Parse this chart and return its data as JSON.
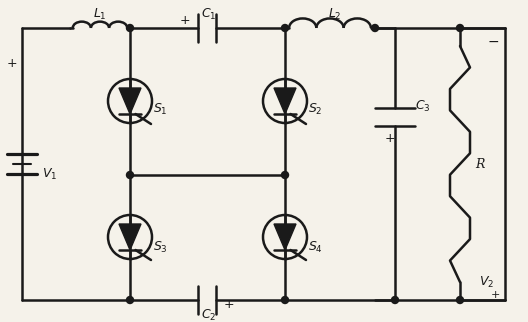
{
  "bg_color": "#f5f2ea",
  "line_color": "#1a1a1a",
  "line_width": 1.8,
  "fig_width": 5.28,
  "fig_height": 3.22,
  "dpi": 100,
  "font_size": 9
}
